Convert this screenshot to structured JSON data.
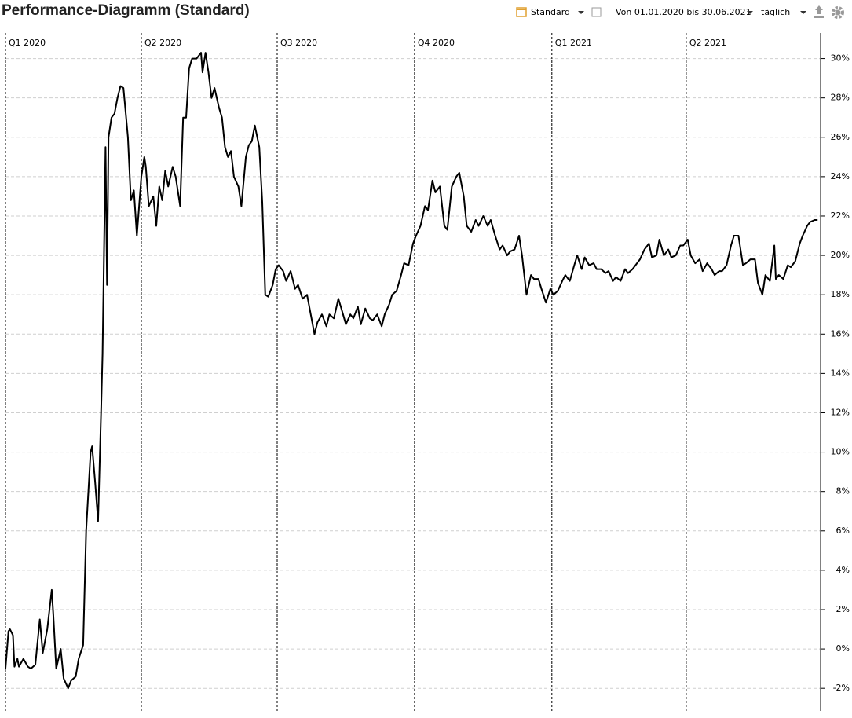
{
  "chart_data": {
    "type": "line",
    "title": "Performance-Diagramm (Standard)",
    "color": "#000000",
    "grid": true,
    "xlim": [
      0,
      546
    ],
    "xticks": [
      {
        "value": 0,
        "label": "Q1 2020"
      },
      {
        "value": 91,
        "label": "Q2 2020"
      },
      {
        "value": 182,
        "label": "Q3 2020"
      },
      {
        "value": 274,
        "label": "Q4 2020"
      },
      {
        "value": 366,
        "label": "Q1 2021"
      },
      {
        "value": 456,
        "label": "Q2 2021"
      }
    ],
    "ylim": [
      -3.15,
      31.3
    ],
    "yticks": [
      {
        "value": -2,
        "label": "-2%"
      },
      {
        "value": 0,
        "label": "0%"
      },
      {
        "value": 2,
        "label": "2%"
      },
      {
        "value": 4,
        "label": "4%"
      },
      {
        "value": 6,
        "label": "6%"
      },
      {
        "value": 8,
        "label": "8%"
      },
      {
        "value": 10,
        "label": "10%"
      },
      {
        "value": 12,
        "label": "12%"
      },
      {
        "value": 14,
        "label": "14%"
      },
      {
        "value": 16,
        "label": "16%"
      },
      {
        "value": 18,
        "label": "18%"
      },
      {
        "value": 20,
        "label": "20%"
      },
      {
        "value": 22,
        "label": "22%"
      },
      {
        "value": 24,
        "label": "24%"
      },
      {
        "value": 26,
        "label": "26%"
      },
      {
        "value": 28,
        "label": "28%"
      },
      {
        "value": 30,
        "label": "30%"
      }
    ],
    "x": [
      0,
      2,
      3,
      5,
      6,
      8,
      9,
      12,
      15,
      17,
      20,
      23,
      25,
      28,
      31,
      32,
      34,
      37,
      39,
      42,
      44,
      47,
      49,
      52,
      54,
      57,
      58,
      60,
      62,
      64,
      65,
      67,
      68,
      69,
      71,
      73,
      75,
      77,
      79,
      82,
      84,
      86,
      88,
      89,
      91,
      93,
      94,
      96,
      99,
      101,
      103,
      105,
      107,
      109,
      112,
      114,
      117,
      119,
      121,
      123,
      125,
      128,
      131,
      132,
      134,
      136,
      138,
      140,
      143,
      145,
      147,
      149,
      151,
      153,
      156,
      158,
      161,
      163,
      165,
      167,
      170,
      172,
      174,
      176,
      179,
      181,
      183,
      186,
      188,
      191,
      194,
      196,
      199,
      202,
      204,
      207,
      209,
      212,
      215,
      217,
      220,
      223,
      225,
      228,
      231,
      233,
      236,
      238,
      241,
      244,
      246,
      249,
      252,
      254,
      257,
      259,
      262,
      265,
      267,
      270,
      273,
      275,
      278,
      281,
      283,
      286,
      288,
      291,
      294,
      296,
      299,
      302,
      304,
      307,
      309,
      312,
      315,
      317,
      320,
      323,
      325,
      328,
      331,
      333,
      336,
      338,
      341,
      344,
      346,
      349,
      352,
      354,
      357,
      359,
      362,
      365,
      367,
      370,
      373,
      375,
      378,
      381,
      383,
      386,
      388,
      391,
      394,
      396,
      399,
      402,
      404,
      407,
      409,
      412,
      415,
      417,
      420,
      423,
      425,
      428,
      431,
      433,
      436,
      438,
      441,
      444,
      446,
      449,
      452,
      454,
      457,
      459,
      462,
      465,
      467,
      470,
      473,
      475,
      478,
      480,
      483,
      486,
      488,
      491,
      494,
      496,
      499,
      502,
      504,
      507,
      509,
      512,
      515,
      516,
      518,
      521,
      524,
      526,
      529,
      532,
      534,
      537,
      539,
      542,
      544
    ],
    "values": [
      -1.0,
      0.9,
      1.0,
      0.7,
      -0.9,
      -0.5,
      -0.9,
      -0.5,
      -0.9,
      -1.0,
      -0.8,
      1.5,
      -0.2,
      1.0,
      3.0,
      1.8,
      -1.0,
      0,
      -1.5,
      -2.0,
      -1.6,
      -1.4,
      -0.5,
      0.2,
      6.0,
      10.0,
      10.3,
      8.5,
      6.5,
      12,
      15,
      25.5,
      18.5,
      26,
      27,
      27.2,
      28,
      28.6,
      28.5,
      26,
      22.8,
      23.3,
      21,
      22,
      24,
      25,
      24.5,
      22.5,
      23,
      21.5,
      23.5,
      22.8,
      24.3,
      23.5,
      24.5,
      24,
      22.5,
      27,
      27,
      29.5,
      30,
      30,
      30.3,
      29.3,
      30.3,
      29.3,
      28,
      28.5,
      27.5,
      27,
      25.5,
      25,
      25.3,
      24,
      23.5,
      22.5,
      25,
      25.6,
      25.8,
      26.6,
      25.5,
      22.7,
      18,
      17.9,
      18.5,
      19.3,
      19.5,
      19.2,
      18.7,
      19.2,
      18.3,
      18.5,
      17.8,
      18.0,
      17.2,
      16.0,
      16.6,
      17.0,
      16.4,
      17.0,
      16.8,
      17.8,
      17.3,
      16.5,
      17.0,
      16.8,
      17.4,
      16.5,
      17.3,
      16.8,
      16.7,
      17.0,
      16.4,
      17.0,
      17.5,
      18.0,
      18.2,
      19.0,
      19.6,
      19.5,
      20.6,
      21.0,
      21.5,
      22.5,
      22.3,
      23.8,
      23.2,
      23.5,
      21.5,
      21.3,
      23.5,
      24.0,
      24.2,
      23.0,
      21.5,
      21.2,
      21.8,
      21.5,
      22.0,
      21.5,
      21.8,
      21.0,
      20.3,
      20.5,
      20.0,
      20.2,
      20.3,
      21.0,
      20.0,
      18.0,
      19.0,
      18.8,
      18.8,
      18.3,
      17.6,
      18.3,
      18.0,
      18.2,
      18.7,
      19.0,
      18.7,
      19.5,
      20.0,
      19.3,
      19.9,
      19.5,
      19.6,
      19.3,
      19.3,
      19.1,
      19.2,
      18.7,
      18.9,
      18.7,
      19.3,
      19.1,
      19.3,
      19.6,
      19.8,
      20.3,
      20.6,
      19.9,
      20.0,
      20.8,
      20.0,
      20.3,
      19.9,
      20.0,
      20.5,
      20.5,
      20.8,
      20.0,
      19.6,
      19.8,
      19.2,
      19.6,
      19.3,
      19.0,
      19.2,
      19.2,
      19.5,
      20.5,
      21.0,
      21.0,
      19.5,
      19.6,
      19.8,
      19.8,
      18.6,
      18.0,
      19.0,
      18.7,
      20.5,
      18.8,
      19.0,
      18.8,
      19.5,
      19.4,
      19.7,
      20.6,
      21.0,
      21.5,
      21.7,
      21.8,
      21.8
    ]
  },
  "toolbar": {
    "view": "Standard",
    "range": "Von 01.01.2020 bis 30.06.2021",
    "interval": "täglich"
  }
}
